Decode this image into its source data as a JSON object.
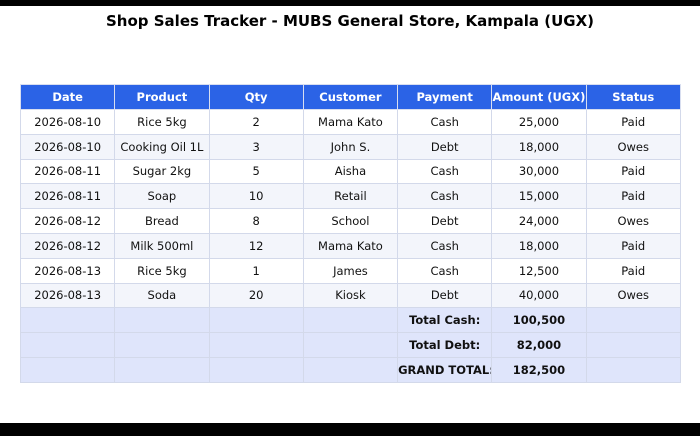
{
  "title": "Shop Sales Tracker - MUBS General Store, Kampala (UGX)",
  "columns": [
    "Date",
    "Product",
    "Qty",
    "Customer",
    "Payment",
    "Amount (UGX)",
    "Status"
  ],
  "rows": [
    [
      "2026-08-10",
      "Rice 5kg",
      "2",
      "Mama Kato",
      "Cash",
      "25,000",
      "Paid"
    ],
    [
      "2026-08-10",
      "Cooking Oil 1L",
      "3",
      "John S.",
      "Debt",
      "18,000",
      "Owes"
    ],
    [
      "2026-08-11",
      "Sugar 2kg",
      "5",
      "Aisha",
      "Cash",
      "30,000",
      "Paid"
    ],
    [
      "2026-08-11",
      "Soap",
      "10",
      "Retail",
      "Cash",
      "15,000",
      "Paid"
    ],
    [
      "2026-08-12",
      "Bread",
      "8",
      "School",
      "Debt",
      "24,000",
      "Owes"
    ],
    [
      "2026-08-12",
      "Milk 500ml",
      "12",
      "Mama Kato",
      "Cash",
      "18,000",
      "Paid"
    ],
    [
      "2026-08-13",
      "Rice 5kg",
      "1",
      "James",
      "Cash",
      "12,500",
      "Paid"
    ],
    [
      "2026-08-13",
      "Soda",
      "20",
      "Kiosk",
      "Debt",
      "40,000",
      "Owes"
    ]
  ],
  "totals": [
    {
      "label": "Total Cash:",
      "value": "100,500"
    },
    {
      "label": "Total Debt:",
      "value": "82,000"
    },
    {
      "label": "GRAND TOTAL:",
      "value": "182,500"
    }
  ]
}
